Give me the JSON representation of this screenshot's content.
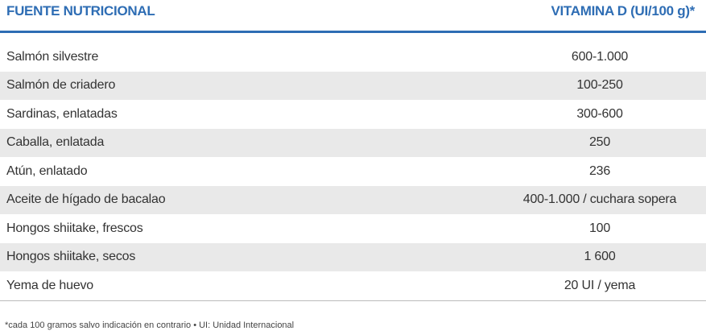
{
  "table": {
    "header": [
      "FUENTE NUTRICIONAL",
      "VITAMINA D (UI/100 g)*"
    ],
    "rows": [
      [
        "Salmón silvestre",
        "600-1.000"
      ],
      [
        "Salmón de criadero",
        "100-250"
      ],
      [
        "Sardinas, enlatadas",
        "300-600"
      ],
      [
        "Caballa, enlatada",
        "250"
      ],
      [
        "Atún, enlatado",
        "236"
      ],
      [
        "Aceite de hígado de bacalao",
        "400-1.000 / cuchara sopera"
      ],
      [
        "Hongos shiitake, frescos",
        "100"
      ],
      [
        "Hongos shiitake, secos",
        "1 600"
      ],
      [
        "Yema de huevo",
        "20 UI / yema"
      ]
    ],
    "footnote": "*cada 100 gramos salvo indicación en contrario • UI: Unidad Internacional"
  }
}
